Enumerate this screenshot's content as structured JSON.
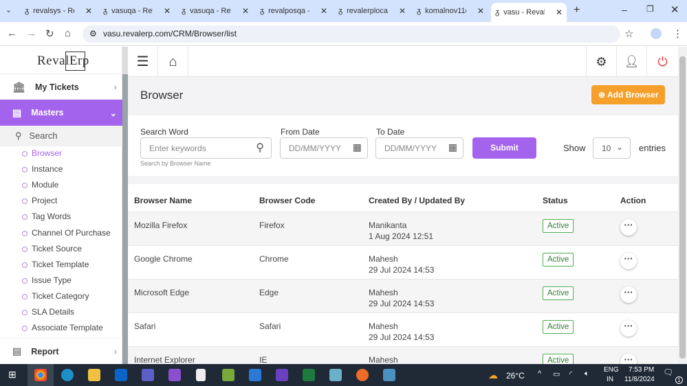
{
  "browser": {
    "tabs": [
      "revalsys - Reva",
      "vasuqa - Reva",
      "vasuqa - Reva",
      "revalposqa - R",
      "revalerplocal",
      "komalnov11q",
      "vasu - RevalER"
    ],
    "url": "vasu.revalerp.com/CRM/Browser/list"
  },
  "sidebar": {
    "logo": "RevalErp",
    "my_tickets": "My Tickets",
    "masters": "Masters",
    "search_placeholder": "Search",
    "items": [
      "Browser",
      "Instance",
      "Module",
      "Project",
      "Tag Words",
      "Channel Of Purchase",
      "Ticket Source",
      "Ticket Template",
      "Issue Type",
      "Ticket Category",
      "SLA Details",
      "Associate Template"
    ],
    "report": "Report"
  },
  "page": {
    "title": "Browser",
    "add_button": "Add Browser",
    "accent": "#a463ec",
    "orange": "#f5a02a"
  },
  "filters": {
    "search_label": "Search Word",
    "search_placeholder": "Enter keywords",
    "search_hint": "Search by Browser Name",
    "from_label": "From Date",
    "from_placeholder": "DD/MM/YYYY",
    "to_label": "To Date",
    "to_placeholder": "DD/MM/YYYY",
    "submit": "Submit",
    "show": "Show",
    "entries_value": "10",
    "entries": "entries"
  },
  "table": {
    "headers": [
      "Browser Name",
      "Browser Code",
      "Created By / Updated By",
      "Status",
      "Action"
    ],
    "rows": [
      {
        "name": "Mozilla Firefox",
        "code": "Firefox",
        "by": "Manikanta",
        "date": "1 Aug 2024 12:51",
        "status": "Active"
      },
      {
        "name": "Google Chrome",
        "code": "Chrome",
        "by": "Mahesh",
        "date": "29 Jul 2024 14:53",
        "status": "Active"
      },
      {
        "name": "Microsoft Edge",
        "code": "Edge",
        "by": "Mahesh",
        "date": "29 Jul 2024 14:53",
        "status": "Active"
      },
      {
        "name": "Safari",
        "code": "Safari",
        "by": "Mahesh",
        "date": "29 Jul 2024 14:53",
        "status": "Active"
      },
      {
        "name": "Internet Explorer",
        "code": "IE",
        "by": "Mahesh",
        "date": "",
        "status": "Active"
      }
    ]
  },
  "taskbar": {
    "temp": "26°C",
    "lang1": "ENG",
    "lang2": "IN",
    "time": "7:53 PM",
    "date": "11/8/2024",
    "notif": "1"
  }
}
